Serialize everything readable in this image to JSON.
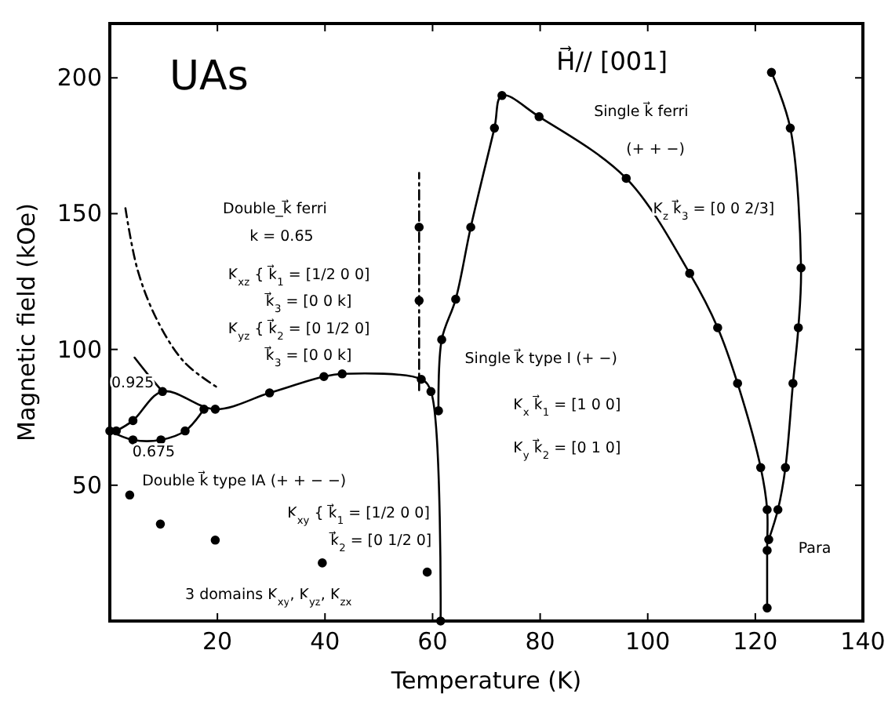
{
  "chart_data": {
    "type": "line",
    "title": "UAs",
    "xlabel": "Temperature (K)",
    "ylabel": "Magnetic field (kOe)",
    "xlim": [
      0,
      140
    ],
    "xticks": [
      20,
      40,
      60,
      80,
      100,
      120,
      140
    ],
    "ylim": [
      0,
      220
    ],
    "yticks": [
      50,
      100,
      150,
      200
    ],
    "grid": false,
    "series": [
      {
        "color": "#000000",
        "marker": "circle",
        "line_style": "solid",
        "x": [
          1.2,
          4.3,
          9.8,
          19.6,
          29.7,
          39.8,
          43.2,
          57.9,
          59.7,
          61.5
        ],
        "values": [
          70,
          73.8,
          84.5,
          78,
          84,
          90,
          91,
          89,
          84.5,
          0
        ]
      },
      {
        "color": "#000000",
        "marker": "circle",
        "line_style": "solid",
        "x": [
          61.1,
          61.7,
          64.3,
          67.1,
          71.5,
          72.9,
          79.8,
          96,
          107.8,
          113,
          116.7,
          121,
          122.2,
          122.2,
          122.2
        ],
        "values": [
          77.4,
          103.6,
          118.5,
          145,
          181.5,
          193.5,
          185.7,
          163,
          128,
          108,
          87.5,
          56.5,
          41,
          26,
          4.8
        ]
      },
      {
        "color": "#000000",
        "marker": "circle",
        "line_style": "solid",
        "x": [
          123,
          126.5,
          128.5,
          128,
          127,
          125.6,
          124.2,
          122.5
        ],
        "values": [
          202,
          181.5,
          130,
          108,
          87.5,
          56.5,
          41,
          30
        ]
      },
      {
        "color": "#000000",
        "marker": "circle",
        "line_style": "solid",
        "x": [
          0,
          4.3,
          9.5,
          14,
          17.5
        ],
        "values": [
          70,
          66.7,
          66.7,
          70,
          78
        ]
      },
      {
        "color": "#000000",
        "marker": "none",
        "line_style": "solid",
        "x": [
          4.6,
          7,
          9.8
        ],
        "values": [
          97,
          91,
          84.5
        ]
      },
      {
        "color": "#000000",
        "marker": "none",
        "line_style": "dashed",
        "x": [
          2.9,
          5.2,
          9,
          14,
          20
        ],
        "values": [
          152,
          129,
          110,
          95,
          86
        ]
      },
      {
        "color": "#000000",
        "marker": "none",
        "line_style": "dashed",
        "x": [
          57.5,
          57.5
        ],
        "values": [
          85,
          165
        ]
      },
      {
        "type": "scatter",
        "color": "#000000",
        "marker": "circle",
        "x": [
          57.5,
          57.5
        ],
        "values": [
          145,
          118
        ]
      },
      {
        "type": "scatter",
        "color": "#000000",
        "marker": "circle",
        "x": [
          3.7,
          9.4,
          19.6,
          39.5,
          59
        ],
        "values": [
          46.4,
          35.7,
          29.8,
          21.4,
          18
        ]
      }
    ],
    "annotations": [
      "H⃗// [001]",
      "Double_k⃗ ferri",
      "k = 0.65",
      "K$_{xz}$ { k⃗$_{1}$ = [1/2 0 0]",
      "k⃗$_{3}$ = [0 0 k]",
      "K$_{yz}$ { k⃗$_{2}$ = [0 1/2 0]",
      "k⃗$_{3}$ = [0 0 k]",
      "Single k⃗ ferri",
      "(+ + −)",
      "K$_{z}$ k⃗$_{3}$ = [0 0 2/3]",
      "Single k⃗ type I (+ −)",
      "K$_{x}$ k⃗$_{1}$ = [1 0 0]",
      "K$_{y}$ k⃗$_{2}$ = [0 1 0]",
      "Double k⃗ type IA (+ + − −)",
      "K$_{xy}$ { k⃗$_{1}$ = [1/2 0 0]",
      "k⃗$_{2}$ = [0 1/2 0]",
      "3 domains  K$_{xy}$, K$_{yz}$, K$_{zx}$",
      "Para",
      "0.925",
      "0.675"
    ]
  }
}
